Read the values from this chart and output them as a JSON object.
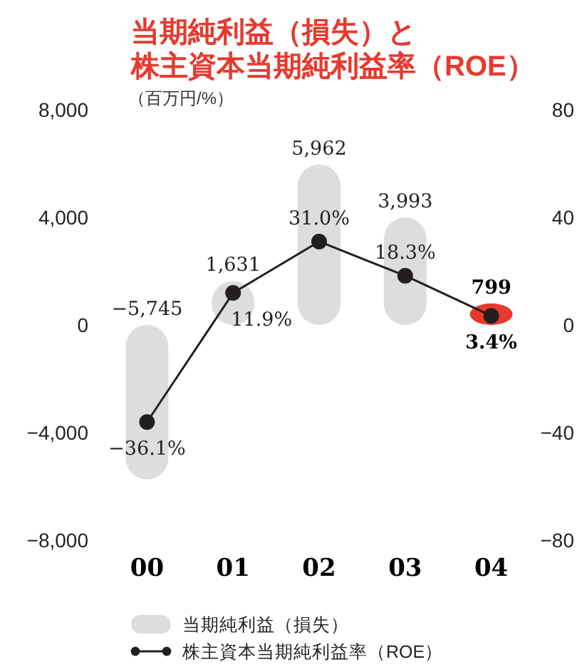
{
  "chart_data": {
    "type": "bar",
    "title": "当期純利益（損失）と株主資本当期純利益率（ROE）",
    "subtitle": "（百万円/%）",
    "categories": [
      "00",
      "01",
      "02",
      "03",
      "04"
    ],
    "series": [
      {
        "name": "当期純利益（損失）",
        "color": "#dcdddf",
        "colors": [
          "#dcdddf",
          "#dcdddf",
          "#dcdddf",
          "#dcdddf",
          "#e63a2f"
        ],
        "values": [
          -5745,
          1631,
          5962,
          3993,
          799
        ],
        "value_labels": [
          "−5,745",
          "1,631",
          "5,962",
          "3,993",
          "799"
        ]
      },
      {
        "name": "株主資本当期純利益率（ROE）",
        "type": "line",
        "axis": "y2",
        "color": "#231f20",
        "values": [
          -36.1,
          11.9,
          31.0,
          18.3,
          3.4
        ],
        "value_labels": [
          "−36.1%",
          "11.9%",
          "31.0%",
          "18.3%",
          "3.4%"
        ]
      }
    ],
    "ylim": [
      -8000,
      8000
    ],
    "yticks": [
      {
        "value": 8000,
        "label": "8,000"
      },
      {
        "value": 4000,
        "label": "4,000"
      },
      0,
      {
        "value": -4000,
        "label": "−4,000"
      },
      {
        "value": -8000,
        "label": "−8,000"
      }
    ],
    "y2lim": [
      -80,
      80
    ],
    "y2ticks": [
      80,
      40,
      0,
      {
        "value": -40,
        "label": "−40"
      },
      {
        "value": -80,
        "label": "−80"
      }
    ],
    "marker": "circle",
    "line_style": "solid",
    "legend": "bottom"
  }
}
